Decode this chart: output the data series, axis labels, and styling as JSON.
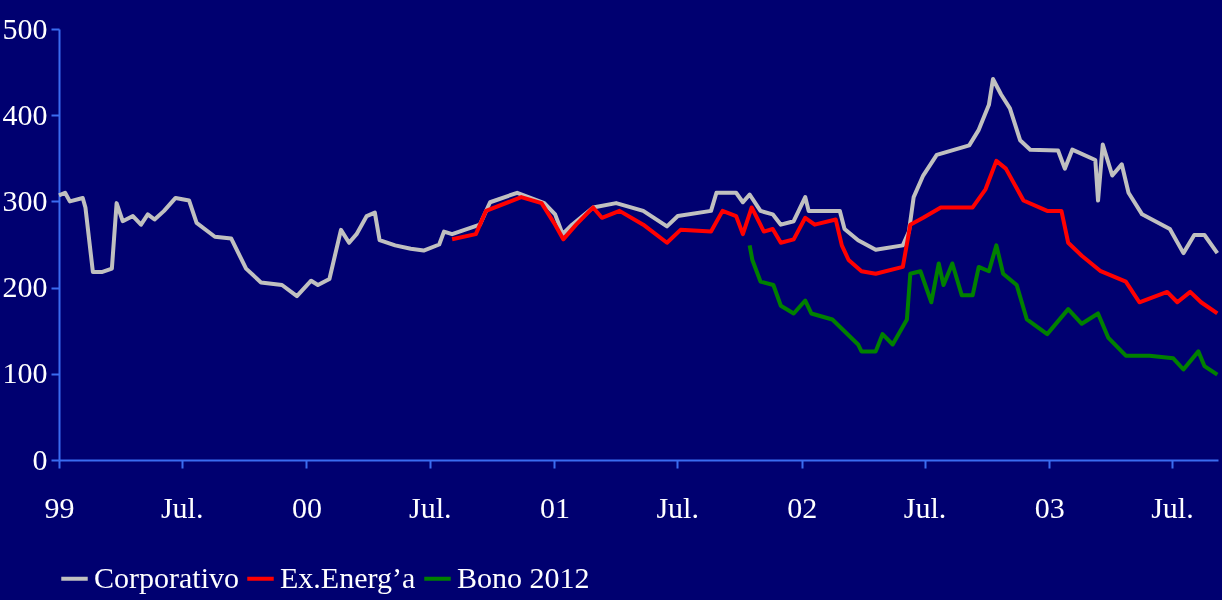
{
  "chart_data": {
    "type": "line",
    "legend": "bottom",
    "grid": false,
    "xlim": [
      "1999-01-01",
      "2003-09-07"
    ],
    "ylim": [
      0,
      500
    ],
    "yticks": [
      0,
      100,
      200,
      300,
      400,
      500
    ],
    "xticks": [
      {
        "value": "1999-01-01",
        "label": "99"
      },
      {
        "value": "1999-07-01",
        "label": "Jul."
      },
      {
        "value": "2000-01-01",
        "label": "00"
      },
      {
        "value": "2000-07-01",
        "label": "Jul."
      },
      {
        "value": "2001-01-01",
        "label": "01"
      },
      {
        "value": "2001-07-01",
        "label": "Jul."
      },
      {
        "value": "2002-01-01",
        "label": "02"
      },
      {
        "value": "2002-07-01",
        "label": "Jul."
      },
      {
        "value": "2003-01-01",
        "label": "03"
      },
      {
        "value": "2003-07-01",
        "label": "Jul."
      }
    ],
    "series": [
      {
        "name": "Corporativo",
        "color": "#c0c0c0",
        "x": [
          "1999-01-01",
          "1999-01-10",
          "1999-01-17",
          "1999-02-05",
          "1999-02-09",
          "1999-02-20",
          "1999-03-05",
          "1999-03-20",
          "1999-03-27",
          "1999-04-05",
          "1999-04-20",
          "1999-05-02",
          "1999-05-12",
          "1999-05-22",
          "1999-06-05",
          "1999-06-22",
          "1999-07-12",
          "1999-07-23",
          "1999-08-19",
          "1999-09-12",
          "1999-10-04",
          "1999-10-26",
          "1999-11-26",
          "1999-12-18",
          "2000-01-08",
          "2000-01-18",
          "2000-02-04",
          "2000-02-21",
          "2000-03-04",
          "2000-03-15",
          "2000-03-30",
          "2000-04-11",
          "2000-04-18",
          "2000-05-11",
          "2000-06-03",
          "2000-06-22",
          "2000-07-15",
          "2000-07-22",
          "2000-08-03",
          "2000-09-13",
          "2000-09-28",
          "2000-11-07",
          "2000-12-17",
          "2001-01-02",
          "2001-01-13",
          "2001-01-27",
          "2001-02-27",
          "2001-04-02",
          "2001-05-12",
          "2001-06-16",
          "2001-07-02",
          "2001-08-20",
          "2001-08-28",
          "2001-09-26",
          "2001-10-06",
          "2001-10-16",
          "2001-11-01",
          "2001-11-19",
          "2001-12-01",
          "2001-12-20",
          "2002-01-06",
          "2002-01-11",
          "2002-02-26",
          "2002-03-05",
          "2002-03-25",
          "2002-04-20",
          "2002-05-30",
          "2002-06-08",
          "2002-06-15",
          "2002-06-29",
          "2002-07-19",
          "2002-09-05",
          "2002-09-19",
          "2002-10-04",
          "2002-10-10",
          "2002-10-22",
          "2002-11-04",
          "2002-11-19",
          "2002-12-04",
          "2003-01-14",
          "2003-01-24",
          "2003-02-04",
          "2003-03-10",
          "2003-03-14",
          "2003-03-21",
          "2003-04-04",
          "2003-04-18",
          "2003-04-28",
          "2003-05-18",
          "2003-06-28",
          "2003-07-18",
          "2003-08-03",
          "2003-08-18",
          "2003-09-06"
        ],
        "values": [
          307,
          310,
          300,
          304,
          293,
          218,
          218,
          222,
          298,
          277,
          283,
          273,
          285,
          279,
          289,
          304,
          301,
          275,
          259,
          257,
          222,
          206,
          203,
          190,
          208,
          203,
          210,
          267,
          252,
          262,
          283,
          287,
          255,
          249,
          245,
          243,
          250,
          265,
          262,
          273,
          299,
          310,
          298,
          285,
          262,
          273,
          293,
          298,
          289,
          271,
          283,
          289,
          310,
          310,
          299,
          308,
          289,
          285,
          273,
          277,
          305,
          289,
          289,
          268,
          255,
          244,
          249,
          265,
          305,
          330,
          354,
          365,
          383,
          412,
          442,
          424,
          408,
          371,
          360,
          359,
          338,
          360,
          348,
          301,
          366,
          330,
          343,
          310,
          285,
          268,
          240,
          261,
          261,
          240
        ]
      },
      {
        "name": "Ex.Energ’a",
        "color": "#ff0000",
        "x": [
          "2000-08-03",
          "2000-09-07",
          "2000-09-22",
          "2000-11-13",
          "2000-12-13",
          "2001-01-02",
          "2001-01-14",
          "2001-02-02",
          "2001-02-27",
          "2001-03-12",
          "2001-04-07",
          "2001-05-12",
          "2001-06-16",
          "2001-07-06",
          "2001-08-20",
          "2001-09-06",
          "2001-09-26",
          "2001-10-06",
          "2001-10-19",
          "2001-11-06",
          "2001-11-19",
          "2001-12-01",
          "2001-12-20",
          "2002-01-06",
          "2002-01-20",
          "2002-02-20",
          "2002-03-01",
          "2002-03-11",
          "2002-03-30",
          "2002-04-20",
          "2002-05-30",
          "2002-06-10",
          "2002-06-29",
          "2002-07-25",
          "2002-09-10",
          "2002-09-29",
          "2002-10-15",
          "2002-10-29",
          "2002-11-24",
          "2002-12-29",
          "2003-01-19",
          "2003-01-29",
          "2003-02-18",
          "2003-03-18",
          "2003-04-24",
          "2003-05-14",
          "2003-06-24",
          "2003-07-09",
          "2003-07-28",
          "2003-08-13",
          "2003-09-06"
        ],
        "values": [
          256,
          262,
          289,
          305,
          298,
          273,
          256,
          273,
          293,
          281,
          289,
          273,
          252,
          267,
          265,
          289,
          283,
          262,
          293,
          265,
          268,
          252,
          256,
          281,
          273,
          279,
          249,
          232,
          219,
          216,
          224,
          273,
          281,
          293,
          293,
          314,
          347,
          338,
          301,
          289,
          289,
          252,
          237,
          219,
          207,
          183,
          195,
          183,
          195,
          183,
          170
        ]
      },
      {
        "name": "Bono 2012",
        "color": "#008000",
        "x": [
          "2001-10-16",
          "2001-10-20",
          "2001-11-01",
          "2001-11-20",
          "2001-12-01",
          "2001-12-20",
          "2002-01-06",
          "2002-01-15",
          "2002-02-15",
          "2002-03-25",
          "2002-03-30",
          "2002-04-20",
          "2002-04-30",
          "2002-05-15",
          "2002-06-05",
          "2002-06-10",
          "2002-06-25",
          "2002-07-11",
          "2002-07-22",
          "2002-07-29",
          "2002-08-11",
          "2002-08-25",
          "2002-09-10",
          "2002-09-19",
          "2002-10-04",
          "2002-10-15",
          "2002-10-25",
          "2002-11-14",
          "2002-11-29",
          "2002-12-29",
          "2003-01-29",
          "2003-02-18",
          "2003-03-14",
          "2003-03-29",
          "2003-04-24",
          "2003-05-29",
          "2003-07-03",
          "2003-07-18",
          "2003-08-09",
          "2003-08-18",
          "2003-09-06"
        ],
        "values": [
          249,
          232,
          207,
          203,
          179,
          170,
          185,
          170,
          163,
          134,
          126,
          126,
          146,
          134,
          163,
          216,
          219,
          183,
          228,
          203,
          228,
          191,
          191,
          224,
          219,
          249,
          216,
          203,
          163,
          146,
          175,
          158,
          170,
          142,
          121,
          121,
          118,
          105,
          126,
          109,
          99
        ]
      }
    ]
  }
}
